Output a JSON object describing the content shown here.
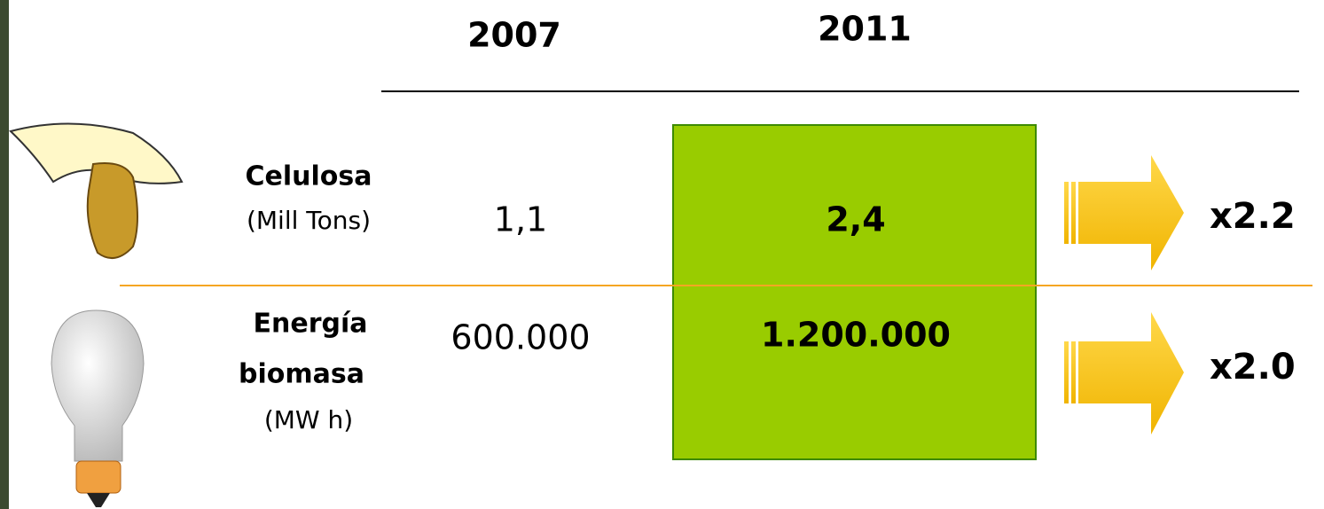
{
  "table": {
    "columns": [
      "2007",
      "2011"
    ],
    "rows": [
      {
        "label": "Celulosa",
        "unit": "(Mill Tons)",
        "values": [
          "1,1",
          "2,4"
        ],
        "growth": "x2.2"
      },
      {
        "label_lines": [
          "Energía",
          "biomasa"
        ],
        "unit": "(MW h)",
        "values": [
          "600.000",
          "1.200.000"
        ],
        "growth": "x2.0"
      }
    ]
  }
}
